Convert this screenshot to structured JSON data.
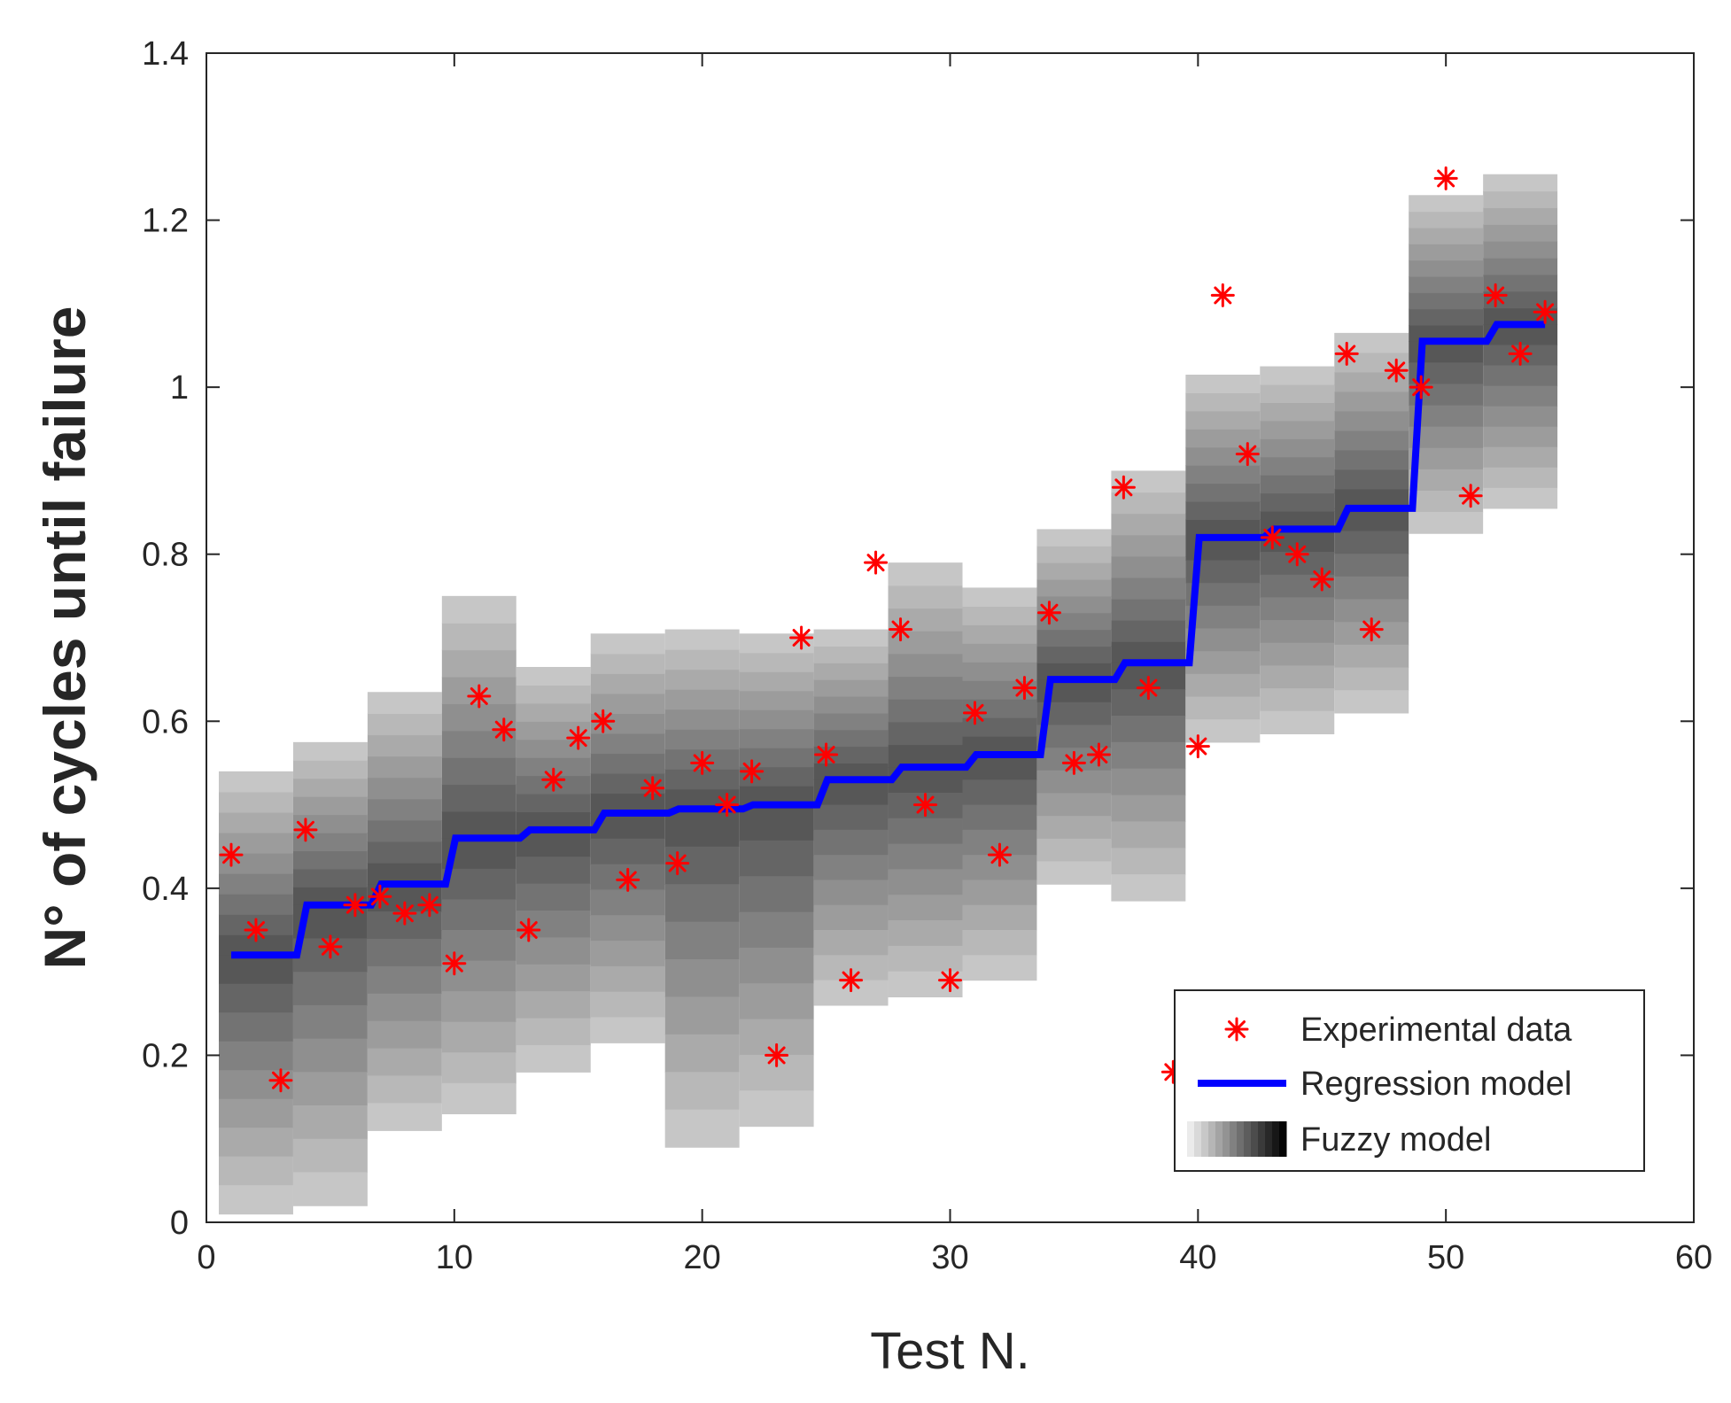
{
  "chart_data": {
    "type": "scatter",
    "title": "",
    "xlabel": "Test N.",
    "ylabel": "N° of cycles until failure",
    "xlim": [
      0,
      60
    ],
    "ylim": [
      0,
      1.4
    ],
    "xticks": [
      0,
      10,
      20,
      30,
      40,
      50,
      60
    ],
    "xtick_labels": [
      "0",
      "10",
      "20",
      "30",
      "40",
      "50",
      "60"
    ],
    "yticks": [
      0,
      0.2,
      0.4,
      0.6,
      0.8,
      1.0,
      1.2,
      1.4
    ],
    "ytick_labels": [
      "0",
      "0.2",
      "0.4",
      "0.6",
      "0.8",
      "1",
      "1.2",
      "1.4"
    ],
    "grid": false,
    "legend_position": "bottom-right",
    "series": [
      {
        "name": "Experimental data",
        "kind": "scatter",
        "marker": "asterisk",
        "color": "#ff0000",
        "x": [
          1,
          2,
          3,
          4,
          5,
          6,
          7,
          8,
          9,
          10,
          11,
          12,
          13,
          14,
          15,
          16,
          17,
          18,
          19,
          20,
          21,
          22,
          23,
          24,
          25,
          26,
          27,
          28,
          29,
          30,
          31,
          32,
          33,
          34,
          35,
          36,
          37,
          38,
          39,
          40,
          41,
          42,
          43,
          44,
          45,
          46,
          47,
          48,
          49,
          50,
          51,
          52,
          53,
          54
        ],
        "y": [
          0.44,
          0.35,
          0.17,
          0.47,
          0.33,
          0.38,
          0.39,
          0.37,
          0.38,
          0.31,
          0.63,
          0.59,
          0.35,
          0.53,
          0.58,
          0.6,
          0.41,
          0.52,
          0.43,
          0.55,
          0.5,
          0.54,
          0.2,
          0.7,
          0.56,
          0.29,
          0.79,
          0.71,
          0.5,
          0.29,
          0.61,
          0.44,
          0.64,
          0.73,
          0.55,
          0.56,
          0.88,
          0.64,
          0.18,
          0.57,
          1.11,
          0.92,
          0.82,
          0.8,
          0.77,
          1.04,
          0.71,
          1.02,
          1.0,
          1.25,
          0.87,
          1.11,
          1.04,
          1.09
        ]
      },
      {
        "name": "Regression model",
        "kind": "step-line",
        "color": "#0000ff",
        "x": [
          1,
          2,
          3,
          4,
          5,
          6,
          7,
          8,
          9,
          10,
          11,
          12,
          13,
          14,
          15,
          16,
          17,
          18,
          19,
          20,
          21,
          22,
          23,
          24,
          25,
          26,
          27,
          28,
          29,
          30,
          31,
          32,
          33,
          34,
          35,
          36,
          37,
          38,
          39,
          40,
          41,
          42,
          43,
          44,
          45,
          46,
          47,
          48,
          49,
          50,
          51,
          52,
          53,
          54
        ],
        "y": [
          0.32,
          0.32,
          0.32,
          0.38,
          0.38,
          0.38,
          0.405,
          0.405,
          0.405,
          0.46,
          0.46,
          0.46,
          0.47,
          0.47,
          0.47,
          0.49,
          0.49,
          0.49,
          0.495,
          0.495,
          0.495,
          0.5,
          0.5,
          0.5,
          0.53,
          0.53,
          0.53,
          0.545,
          0.545,
          0.545,
          0.56,
          0.56,
          0.56,
          0.65,
          0.65,
          0.65,
          0.67,
          0.67,
          0.67,
          0.82,
          0.82,
          0.82,
          0.83,
          0.83,
          0.83,
          0.855,
          0.855,
          0.855,
          1.055,
          1.055,
          1.055,
          1.075,
          1.075,
          1.075
        ]
      },
      {
        "name": "Fuzzy model",
        "kind": "fuzzy-band",
        "groups": [
          {
            "x_start": 0.5,
            "x_end": 3.5,
            "center": 0.32,
            "lower": 0.01,
            "upper": 0.54
          },
          {
            "x_start": 3.5,
            "x_end": 6.5,
            "center": 0.38,
            "lower": 0.02,
            "upper": 0.575
          },
          {
            "x_start": 6.5,
            "x_end": 9.5,
            "center": 0.405,
            "lower": 0.11,
            "upper": 0.635
          },
          {
            "x_start": 9.5,
            "x_end": 12.5,
            "center": 0.46,
            "lower": 0.13,
            "upper": 0.75
          },
          {
            "x_start": 12.5,
            "x_end": 15.5,
            "center": 0.47,
            "lower": 0.18,
            "upper": 0.665
          },
          {
            "x_start": 15.5,
            "x_end": 18.5,
            "center": 0.49,
            "lower": 0.215,
            "upper": 0.705
          },
          {
            "x_start": 18.5,
            "x_end": 21.5,
            "center": 0.495,
            "lower": 0.09,
            "upper": 0.71
          },
          {
            "x_start": 21.5,
            "x_end": 24.5,
            "center": 0.5,
            "lower": 0.115,
            "upper": 0.705
          },
          {
            "x_start": 24.5,
            "x_end": 27.5,
            "center": 0.53,
            "lower": 0.26,
            "upper": 0.71
          },
          {
            "x_start": 27.5,
            "x_end": 30.5,
            "center": 0.545,
            "lower": 0.27,
            "upper": 0.79
          },
          {
            "x_start": 30.5,
            "x_end": 33.5,
            "center": 0.56,
            "lower": 0.29,
            "upper": 0.76
          },
          {
            "x_start": 33.5,
            "x_end": 36.5,
            "center": 0.65,
            "lower": 0.405,
            "upper": 0.83
          },
          {
            "x_start": 36.5,
            "x_end": 39.5,
            "center": 0.67,
            "lower": 0.385,
            "upper": 0.9
          },
          {
            "x_start": 39.5,
            "x_end": 42.5,
            "center": 0.82,
            "lower": 0.575,
            "upper": 1.015
          },
          {
            "x_start": 42.5,
            "x_end": 45.5,
            "center": 0.83,
            "lower": 0.585,
            "upper": 1.025
          },
          {
            "x_start": 45.5,
            "x_end": 48.5,
            "center": 0.855,
            "lower": 0.61,
            "upper": 1.065
          },
          {
            "x_start": 48.5,
            "x_end": 51.5,
            "center": 1.055,
            "lower": 0.825,
            "upper": 1.23
          },
          {
            "x_start": 51.5,
            "x_end": 54.5,
            "center": 1.075,
            "lower": 0.855,
            "upper": 1.255
          }
        ]
      }
    ],
    "legend": [
      {
        "label": "Experimental data",
        "symbol": "asterisk"
      },
      {
        "label": "Regression model",
        "symbol": "line"
      },
      {
        "label": "Fuzzy model",
        "symbol": "gradient"
      }
    ]
  },
  "colors": {
    "marker": "#ff0000",
    "regression": "#0000ff",
    "axis": "#262626"
  }
}
